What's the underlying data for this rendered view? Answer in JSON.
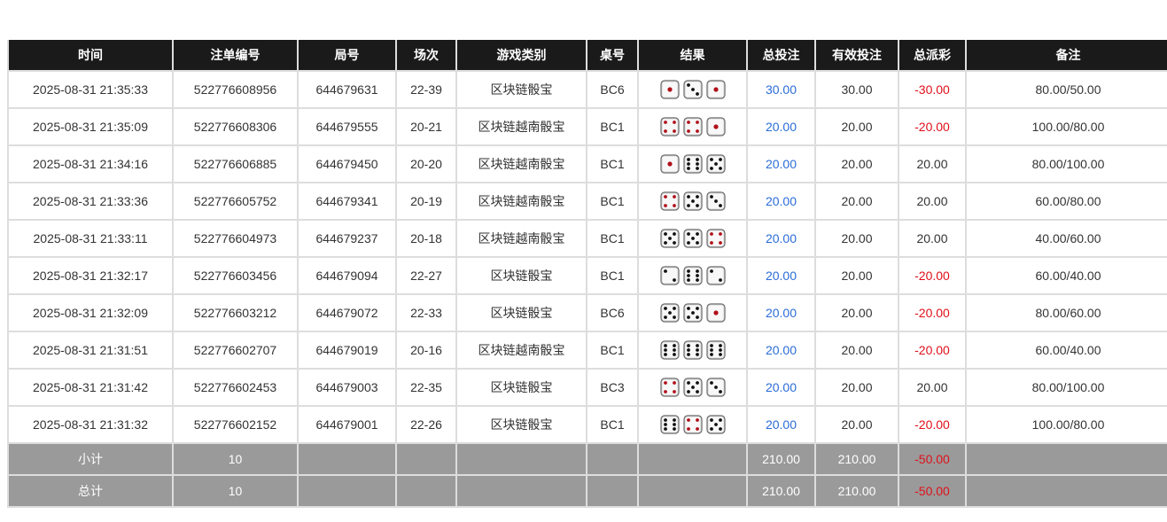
{
  "headers": [
    "时间",
    "注单编号",
    "局号",
    "场次",
    "游戏类别",
    "桌号",
    "结果",
    "总投注",
    "有效投注",
    "总派彩",
    "备注"
  ],
  "rows": [
    {
      "time": "2025-08-31 21:35:33",
      "bet_id": "522776608956",
      "round": "644679631",
      "session": "22-39",
      "game": "区块链骰宝",
      "table": "BC6",
      "dice": [
        1,
        3,
        1
      ],
      "total": "30.00",
      "valid": "30.00",
      "payout": "-30.00",
      "note": "80.00/50.00"
    },
    {
      "time": "2025-08-31 21:35:09",
      "bet_id": "522776608306",
      "round": "644679555",
      "session": "20-21",
      "game": "区块链越南骰宝",
      "table": "BC1",
      "dice": [
        4,
        4,
        1
      ],
      "total": "20.00",
      "valid": "20.00",
      "payout": "-20.00",
      "note": "100.00/80.00"
    },
    {
      "time": "2025-08-31 21:34:16",
      "bet_id": "522776606885",
      "round": "644679450",
      "session": "20-20",
      "game": "区块链越南骰宝",
      "table": "BC1",
      "dice": [
        1,
        6,
        5
      ],
      "total": "20.00",
      "valid": "20.00",
      "payout": "20.00",
      "note": "80.00/100.00"
    },
    {
      "time": "2025-08-31 21:33:36",
      "bet_id": "522776605752",
      "round": "644679341",
      "session": "20-19",
      "game": "区块链越南骰宝",
      "table": "BC1",
      "dice": [
        4,
        5,
        3
      ],
      "total": "20.00",
      "valid": "20.00",
      "payout": "20.00",
      "note": "60.00/80.00"
    },
    {
      "time": "2025-08-31 21:33:11",
      "bet_id": "522776604973",
      "round": "644679237",
      "session": "20-18",
      "game": "区块链越南骰宝",
      "table": "BC1",
      "dice": [
        5,
        5,
        4
      ],
      "total": "20.00",
      "valid": "20.00",
      "payout": "20.00",
      "note": "40.00/60.00"
    },
    {
      "time": "2025-08-31 21:32:17",
      "bet_id": "522776603456",
      "round": "644679094",
      "session": "22-27",
      "game": "区块链骰宝",
      "table": "BC1",
      "dice": [
        2,
        6,
        2
      ],
      "total": "20.00",
      "valid": "20.00",
      "payout": "-20.00",
      "note": "60.00/40.00"
    },
    {
      "time": "2025-08-31 21:32:09",
      "bet_id": "522776603212",
      "round": "644679072",
      "session": "22-33",
      "game": "区块链骰宝",
      "table": "BC6",
      "dice": [
        5,
        5,
        1
      ],
      "total": "20.00",
      "valid": "20.00",
      "payout": "-20.00",
      "note": "80.00/60.00"
    },
    {
      "time": "2025-08-31 21:31:51",
      "bet_id": "522776602707",
      "round": "644679019",
      "session": "20-16",
      "game": "区块链越南骰宝",
      "table": "BC1",
      "dice": [
        6,
        6,
        6
      ],
      "total": "20.00",
      "valid": "20.00",
      "payout": "-20.00",
      "note": "60.00/40.00"
    },
    {
      "time": "2025-08-31 21:31:42",
      "bet_id": "522776602453",
      "round": "644679003",
      "session": "22-35",
      "game": "区块链骰宝",
      "table": "BC3",
      "dice": [
        4,
        5,
        3
      ],
      "total": "20.00",
      "valid": "20.00",
      "payout": "20.00",
      "note": "80.00/100.00"
    },
    {
      "time": "2025-08-31 21:31:32",
      "bet_id": "522776602152",
      "round": "644679001",
      "session": "22-26",
      "game": "区块链骰宝",
      "table": "BC1",
      "dice": [
        6,
        4,
        5
      ],
      "total": "20.00",
      "valid": "20.00",
      "payout": "-20.00",
      "note": "100.00/80.00"
    }
  ],
  "summary": [
    {
      "label": "小计",
      "count": "10",
      "total": "210.00",
      "valid": "210.00",
      "payout": "-50.00"
    },
    {
      "label": "总计",
      "count": "10",
      "total": "210.00",
      "valid": "210.00",
      "payout": "-50.00"
    }
  ],
  "colors": {
    "header_bg": "#1a1a1a",
    "summary_bg": "#9a9a9a",
    "total_bet": "#2a6cd6",
    "negative": "#e0101a",
    "pip_red": "#b0101a",
    "pip_black": "#111111"
  }
}
